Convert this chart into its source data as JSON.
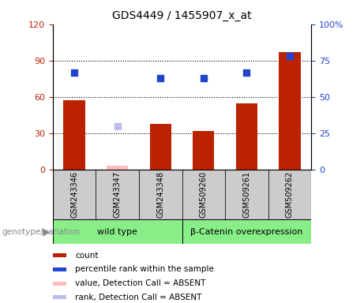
{
  "title": "GDS4449 / 1455907_x_at",
  "samples": [
    "GSM243346",
    "GSM243347",
    "GSM243348",
    "GSM509260",
    "GSM509261",
    "GSM509262"
  ],
  "count_values": [
    57,
    null,
    38,
    32,
    55,
    97
  ],
  "count_absent_values": [
    null,
    3,
    null,
    null,
    null,
    null
  ],
  "rank_values": [
    67,
    null,
    63,
    63,
    67,
    78
  ],
  "rank_absent_values": [
    null,
    30,
    null,
    null,
    null,
    null
  ],
  "left_ylim": [
    0,
    120
  ],
  "right_ylim": [
    0,
    100
  ],
  "left_yticks": [
    0,
    30,
    60,
    90,
    120
  ],
  "right_yticks": [
    0,
    25,
    50,
    75,
    100
  ],
  "right_yticklabels": [
    "0",
    "25",
    "50",
    "75",
    "100%"
  ],
  "groups": [
    {
      "label": "wild type",
      "span": [
        0,
        3
      ],
      "color": "#88ee88"
    },
    {
      "label": "β-Catenin overexpression",
      "span": [
        3,
        6
      ],
      "color": "#88ee88"
    }
  ],
  "genotype_label": "genotype/variation",
  "bar_color": "#bb2200",
  "bar_absent_color": "#ffbbbb",
  "rank_color": "#2244cc",
  "rank_absent_color": "#bbbbee",
  "plot_bg_color": "#ffffff",
  "sample_box_color": "#cccccc",
  "title_fontsize": 10,
  "bar_width": 0.5,
  "rank_marker_size": 6,
  "legend_items": [
    {
      "color": "#bb2200",
      "label": "count"
    },
    {
      "color": "#2244cc",
      "label": "percentile rank within the sample"
    },
    {
      "color": "#ffbbbb",
      "label": "value, Detection Call = ABSENT"
    },
    {
      "color": "#bbbbee",
      "label": "rank, Detection Call = ABSENT"
    }
  ]
}
